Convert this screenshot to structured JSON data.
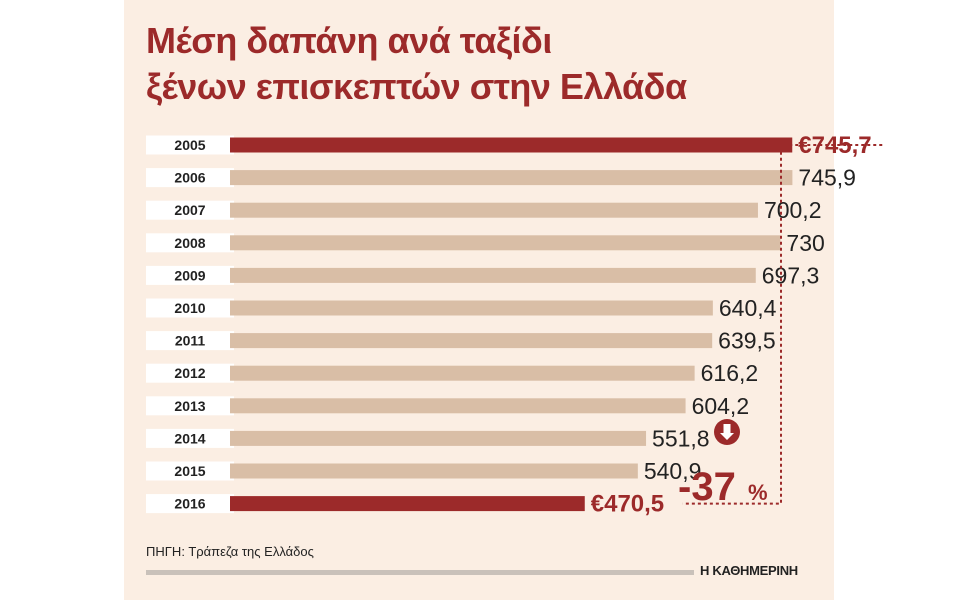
{
  "title_lines": [
    "Μέση δαπάνη ανά ταξίδι",
    "ξένων επισκεπτών στην Ελλάδα"
  ],
  "source": "ΠΗΓΗ: Τράπεζα της Ελλάδος",
  "brand": "Η ΚΑΘΗΜΕΡΙΝΗ",
  "colors": {
    "highlight": "#9c2a2a",
    "bar": "#d9bea6",
    "label_bg": "#ffffff",
    "text": "#222222"
  },
  "chart_data": {
    "type": "bar",
    "orientation": "horizontal",
    "title": "Μέση δαπάνη ανά ταξίδι ξένων επισκεπτών στην Ελλάδα",
    "categories": [
      "2005",
      "2006",
      "2007",
      "2008",
      "2009",
      "2010",
      "2011",
      "2012",
      "2013",
      "2014",
      "2015",
      "2016"
    ],
    "values": [
      745.7,
      745.9,
      700.2,
      730,
      697.3,
      640.4,
      639.5,
      616.2,
      604.2,
      551.8,
      540.9,
      470.5
    ],
    "value_labels": [
      "€745,7",
      "745,9",
      "700,2",
      "730",
      "697,3",
      "640,4",
      "639,5",
      "616,2",
      "604,2",
      "551,8",
      "540,9",
      "€470,5"
    ],
    "highlighted": [
      "2005",
      "2016"
    ],
    "unit": "€",
    "change": {
      "value": "-37",
      "unit": "%",
      "direction": "down"
    }
  }
}
